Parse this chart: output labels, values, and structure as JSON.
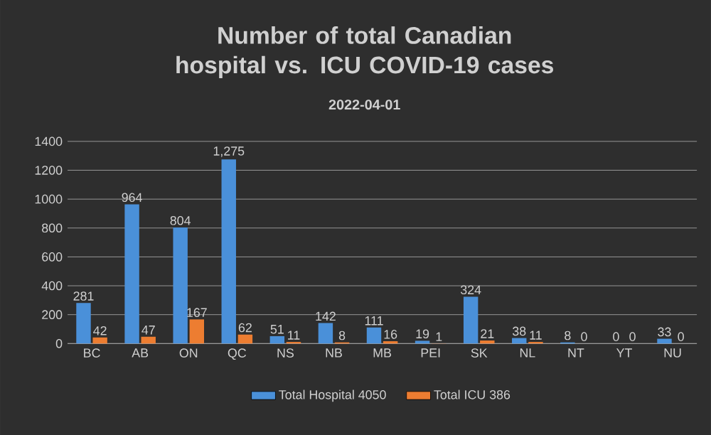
{
  "chart_data": {
    "type": "bar",
    "title": "Number of total Canadian hospital vs. ICU COVID-19 cases",
    "subtitle": "2022-04-01",
    "categories": [
      "BC",
      "AB",
      "ON",
      "QC",
      "NS",
      "NB",
      "MB",
      "PEI",
      "SK",
      "NL",
      "NT",
      "YT",
      "NU"
    ],
    "series": [
      {
        "name": "Total Hospital 4050",
        "color": "#4a90d9",
        "values": [
          281,
          964,
          804,
          1275,
          51,
          142,
          111,
          19,
          324,
          38,
          8,
          0,
          33
        ],
        "value_labels": [
          "281",
          "964",
          "804",
          "1,275",
          "51",
          "142",
          "111",
          "19",
          "324",
          "38",
          "8",
          "0",
          "33"
        ]
      },
      {
        "name": "Total ICU 386",
        "color": "#ed7d31",
        "values": [
          42,
          47,
          167,
          62,
          11,
          8,
          16,
          1,
          21,
          11,
          0,
          0,
          0
        ],
        "value_labels": [
          "42",
          "47",
          "167",
          "62",
          "11",
          "8",
          "16",
          "1",
          "21",
          "11",
          "0",
          "0",
          "0"
        ]
      }
    ],
    "ylim": [
      0,
      1400
    ],
    "yticks": [
      0,
      200,
      400,
      600,
      800,
      1000,
      1200,
      1400
    ],
    "grid": "y",
    "legend": "bottom"
  }
}
